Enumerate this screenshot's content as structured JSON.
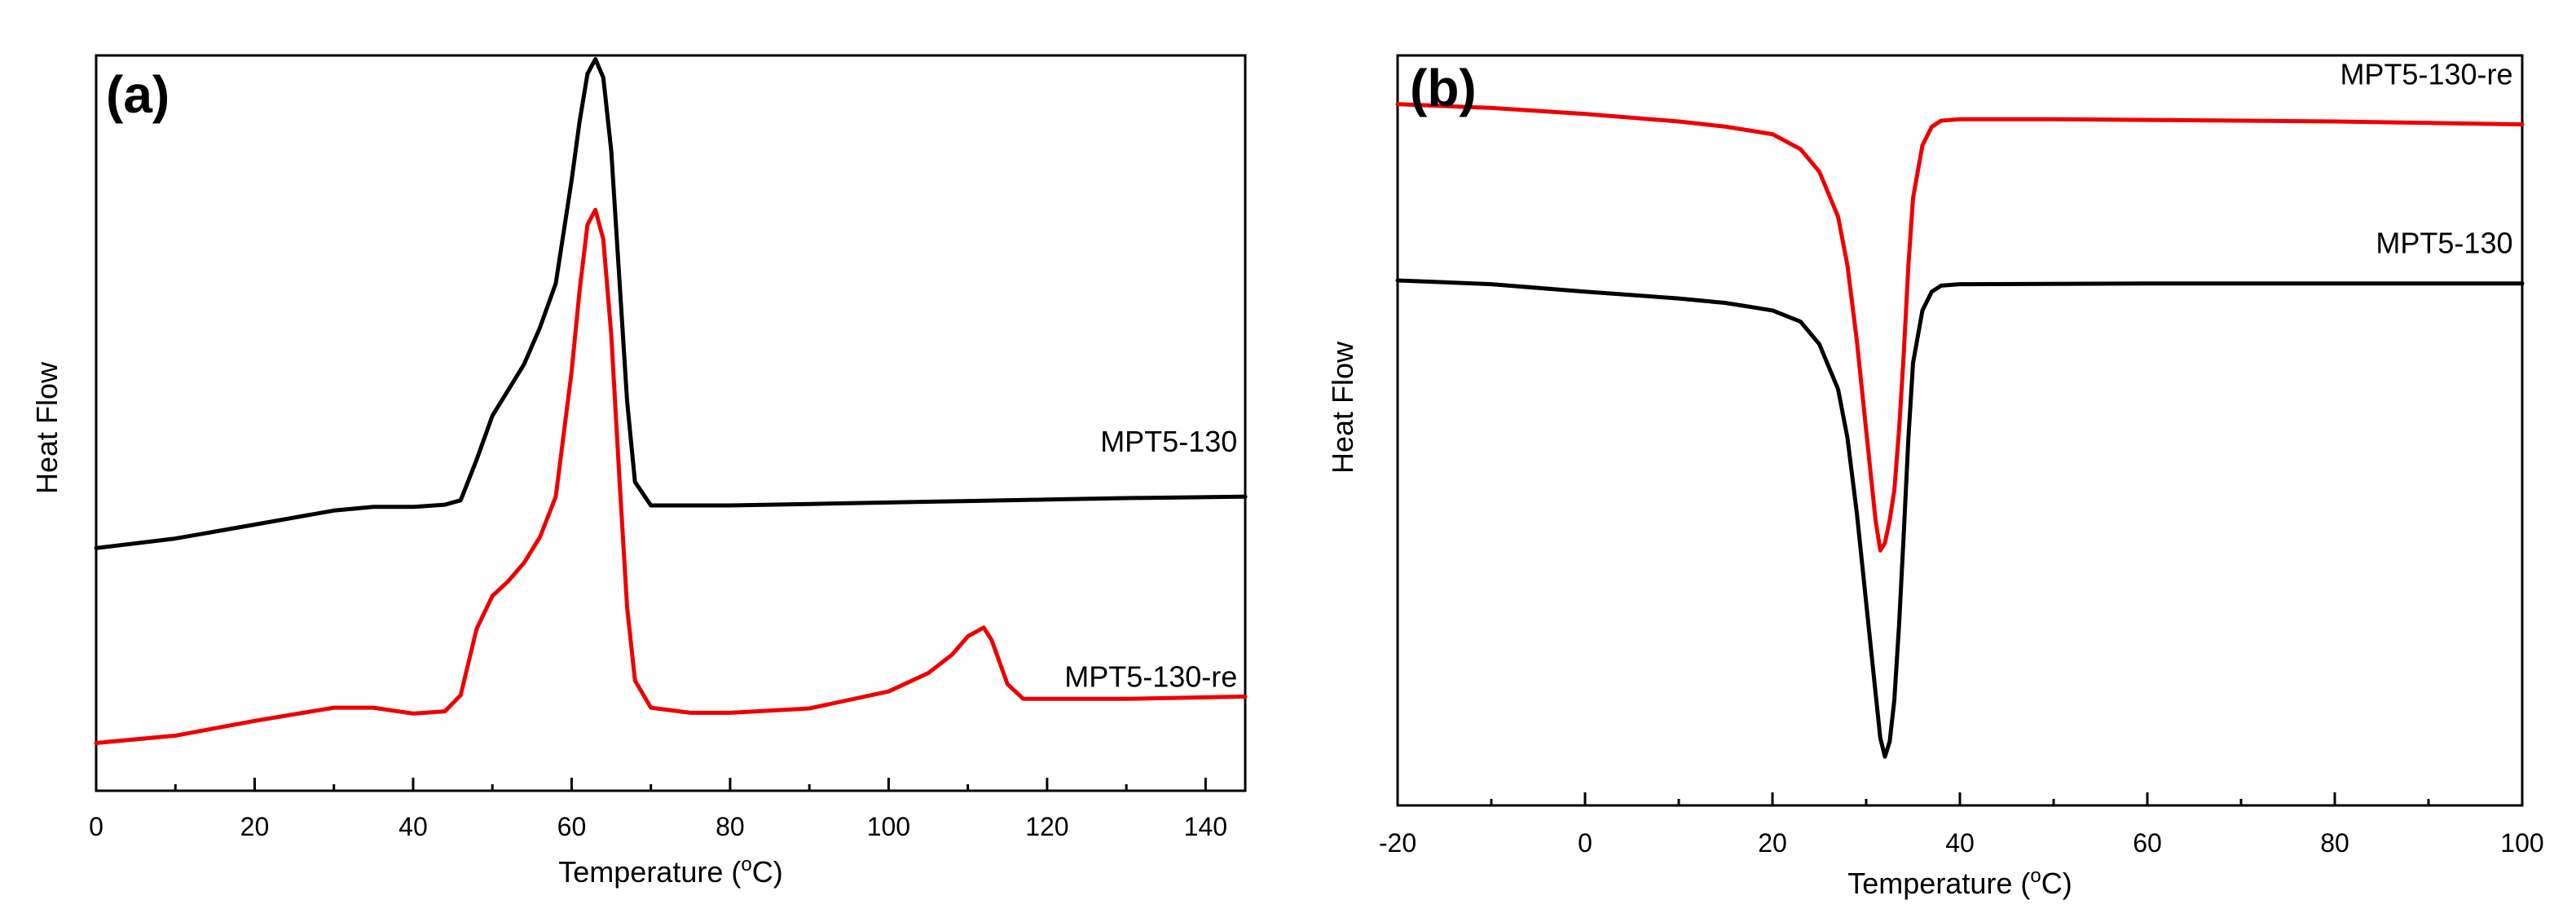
{
  "chart_data": [
    {
      "type": "line",
      "panel_label": "(a)",
      "xlabel": "Temperature (",
      "xlabel_sup": "o",
      "xlabel_unit": "C)",
      "ylabel": "Heat Flow",
      "xlim": [
        0,
        145
      ],
      "ylim": [
        0,
        100
      ],
      "x_ticks": [
        0,
        20,
        40,
        60,
        80,
        100,
        120,
        140
      ],
      "x_tick_labels": [
        "0",
        "20",
        "40",
        "60",
        "80",
        "100",
        "120",
        "140"
      ],
      "x_minor_step": 10,
      "y_ticks": false,
      "series": [
        {
          "name": "MPT5-130",
          "color": "#000000",
          "label_anchor": [
            144,
            45
          ],
          "x": [
            0,
            10,
            20,
            30,
            35,
            40,
            44,
            46,
            48,
            50,
            52,
            54,
            56,
            58,
            60,
            61,
            62,
            63,
            64,
            65,
            66,
            67,
            68,
            70,
            75,
            80,
            90,
            100,
            110,
            120,
            130,
            145
          ],
          "y": [
            33,
            34.3,
            36.2,
            38.1,
            38.6,
            38.6,
            38.9,
            39.5,
            45,
            51,
            54.5,
            58,
            63,
            69,
            83,
            91,
            97.5,
            99.5,
            97,
            87,
            70,
            53,
            42,
            38.8,
            38.8,
            38.8,
            39,
            39.2,
            39.4,
            39.6,
            39.8,
            40
          ]
        },
        {
          "name": "MPT5-130-re",
          "color": "#ee0000",
          "label_anchor": [
            144,
            13
          ],
          "x": [
            0,
            10,
            20,
            30,
            35,
            40,
            44,
            46,
            48,
            50,
            52,
            54,
            56,
            58,
            60,
            61,
            62,
            63,
            64,
            65,
            66,
            67,
            68,
            70,
            75,
            80,
            90,
            100,
            105,
            108,
            110,
            112,
            113,
            115,
            117,
            120,
            130,
            145
          ],
          "y": [
            6.5,
            7.5,
            9.5,
            11.3,
            11.3,
            10.5,
            10.8,
            13,
            22,
            26.5,
            28.5,
            31,
            34.5,
            40,
            57,
            68,
            77,
            79,
            75,
            62,
            43,
            25,
            15,
            11.3,
            10.6,
            10.6,
            11.2,
            13.5,
            16,
            18.5,
            21,
            22.2,
            20.5,
            14.5,
            12.5,
            12.5,
            12.5,
            12.8
          ]
        }
      ]
    },
    {
      "type": "line",
      "panel_label": "(b)",
      "xlabel": "Temperature (",
      "xlabel_sup": "o",
      "xlabel_unit": "C)",
      "ylabel": "Heat Flow",
      "xlim": [
        -20,
        100
      ],
      "ylim": [
        0,
        100
      ],
      "x_ticks": [
        -20,
        0,
        20,
        40,
        60,
        80,
        100
      ],
      "x_tick_labels": [
        "-20",
        "0",
        "20",
        "40",
        "60",
        "80",
        "100"
      ],
      "x_minor_step": 10,
      "y_ticks": false,
      "series": [
        {
          "name": "MPT5-130-re",
          "color": "#ee0000",
          "label_anchor": [
            99,
            95.5
          ],
          "x": [
            -20,
            -10,
            0,
            10,
            15,
            20,
            23,
            25,
            27,
            28,
            29,
            30,
            31,
            31.5,
            32,
            32.5,
            33,
            33.5,
            34,
            34.5,
            35,
            36,
            37,
            38,
            40,
            50,
            60,
            70,
            80,
            100
          ],
          "y": [
            93.5,
            93,
            92.2,
            91.2,
            90.5,
            89.5,
            87.5,
            84.5,
            78.5,
            72,
            62,
            50,
            38,
            34,
            35,
            38,
            42,
            50,
            60,
            72,
            81,
            88,
            90.5,
            91.3,
            91.5,
            91.5,
            91.4,
            91.3,
            91.2,
            90.8
          ]
        },
        {
          "name": "MPT5-130",
          "color": "#000000",
          "label_anchor": [
            99,
            73
          ],
          "x": [
            -20,
            -10,
            0,
            10,
            15,
            20,
            23,
            25,
            27,
            28,
            29,
            30,
            31,
            31.5,
            32,
            32.5,
            33,
            33.5,
            34,
            34.5,
            35,
            36,
            37,
            38,
            40,
            60,
            80,
            100
          ],
          "y": [
            70,
            69.5,
            68.5,
            67.6,
            67,
            66,
            64.5,
            61.5,
            55.5,
            49,
            39,
            27,
            15,
            9,
            6.5,
            8.5,
            14,
            24,
            36,
            49,
            59,
            66,
            68.5,
            69.3,
            69.5,
            69.6,
            69.6,
            69.6
          ]
        }
      ]
    }
  ]
}
